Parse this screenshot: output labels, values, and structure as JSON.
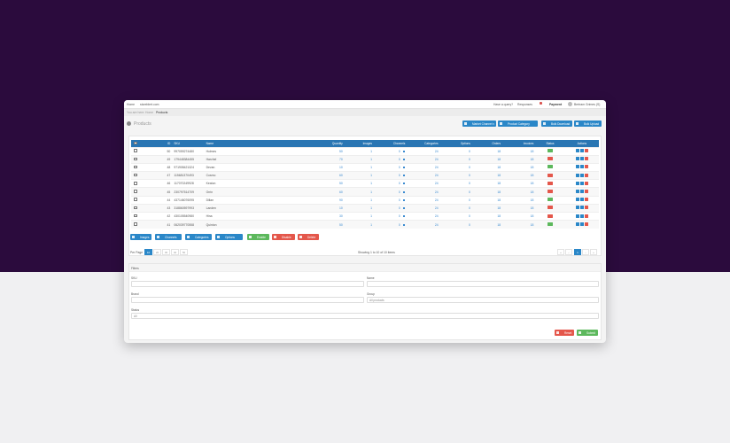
{
  "nav": {
    "home": "Home",
    "site": "storeblert.com",
    "enquiry": "Have a query?",
    "responses": "Responses",
    "payment": "Payment",
    "user": "Bertram Grimes (S)"
  },
  "breadcrumb": {
    "prefix": "You are here:",
    "home": "Home",
    "current": "Products"
  },
  "page_title": "Products",
  "toolbar": {
    "market": "Market Channel ▾",
    "category": "Product Category",
    "download": "Bulk Download",
    "upload": "Bulk Upload"
  },
  "columns": [
    "ID",
    "SKU",
    "Name",
    "Quantity",
    "Images",
    "Channels",
    "Categories",
    "Options",
    "Orders",
    "Invoices",
    "Status",
    "Actions"
  ],
  "rows": [
    {
      "id": "50",
      "sku": "997059274480",
      "name": "Holmes",
      "qty": "50",
      "images": "1",
      "channels": "0",
      "categories": "24",
      "options": "0",
      "orders": "18",
      "invoices": "18",
      "status": "enabled"
    },
    {
      "id": "49",
      "sku": "179448384455",
      "name": "Harvhel",
      "qty": "70",
      "images": "1",
      "channels": "0",
      "categories": "24",
      "options": "0",
      "orders": "18",
      "invoices": "18",
      "status": "disabled"
    },
    {
      "id": "48",
      "sku": "971908421324",
      "name": "Devan",
      "qty": "10",
      "images": "1",
      "channels": "0",
      "categories": "24",
      "options": "0",
      "orders": "18",
      "invoices": "18",
      "status": "enabled"
    },
    {
      "id": "47",
      "sku": "115681370493",
      "name": "Cosmo",
      "qty": "60",
      "images": "1",
      "channels": "0",
      "categories": "24",
      "options": "0",
      "orders": "18",
      "invoices": "18",
      "status": "disabled"
    },
    {
      "id": "46",
      "sku": "117070249928",
      "name": "Keaton",
      "qty": "50",
      "images": "1",
      "channels": "0",
      "categories": "24",
      "options": "0",
      "orders": "18",
      "invoices": "18",
      "status": "disabled"
    },
    {
      "id": "45",
      "sku": "230797514709",
      "name": "Orrin",
      "qty": "60",
      "images": "1",
      "channels": "0",
      "categories": "24",
      "options": "0",
      "orders": "18",
      "invoices": "18",
      "status": "disabled"
    },
    {
      "id": "44",
      "sku": "437146076095",
      "name": "Dillan",
      "qty": "90",
      "images": "1",
      "channels": "0",
      "categories": "24",
      "options": "0",
      "orders": "18",
      "invoices": "18",
      "status": "enabled"
    },
    {
      "id": "43",
      "sku": "318860597993",
      "name": "Landen",
      "qty": "10",
      "images": "1",
      "channels": "0",
      "categories": "24",
      "options": "0",
      "orders": "18",
      "invoices": "18",
      "status": "disabled"
    },
    {
      "id": "42",
      "sku": "430105540980",
      "name": "Hina",
      "qty": "30",
      "images": "1",
      "channels": "0",
      "categories": "24",
      "options": "0",
      "orders": "18",
      "invoices": "18",
      "status": "disabled"
    },
    {
      "id": "41",
      "sku": "062039770558",
      "name": "Quinton",
      "qty": "50",
      "images": "1",
      "channels": "0",
      "categories": "24",
      "options": "0",
      "orders": "18",
      "invoices": "18",
      "status": "enabled"
    }
  ],
  "bulk": {
    "images": "Images",
    "channels": "Channels",
    "categories": "Categories",
    "options": "Options",
    "enable": "Enable",
    "disable": "Disable",
    "delete": "Delete"
  },
  "per_page": {
    "label": "Per Page",
    "options": [
      "10",
      "20",
      "30",
      "40",
      "50"
    ],
    "selected": "10"
  },
  "showing": "Showing 1 to 10 of 10 items",
  "pagination": {
    "first": "«",
    "prev": "‹",
    "current": "1",
    "next": "›",
    "last": "»"
  },
  "filters": {
    "title": "Filters",
    "sku_label": "SKU",
    "sku_value": "",
    "name_label": "Name",
    "name_value": "",
    "brand_label": "Brand",
    "brand_value": "",
    "group_label": "Group",
    "group_value": "All products",
    "status_label": "Status",
    "status_value": "All",
    "reset": "Reset",
    "submit": "Submit"
  },
  "colors": {
    "primary": "#2a87c8",
    "success": "#5cb85c",
    "danger": "#e4574b",
    "header": "#2a76b3",
    "background": "#2b0b3d"
  }
}
